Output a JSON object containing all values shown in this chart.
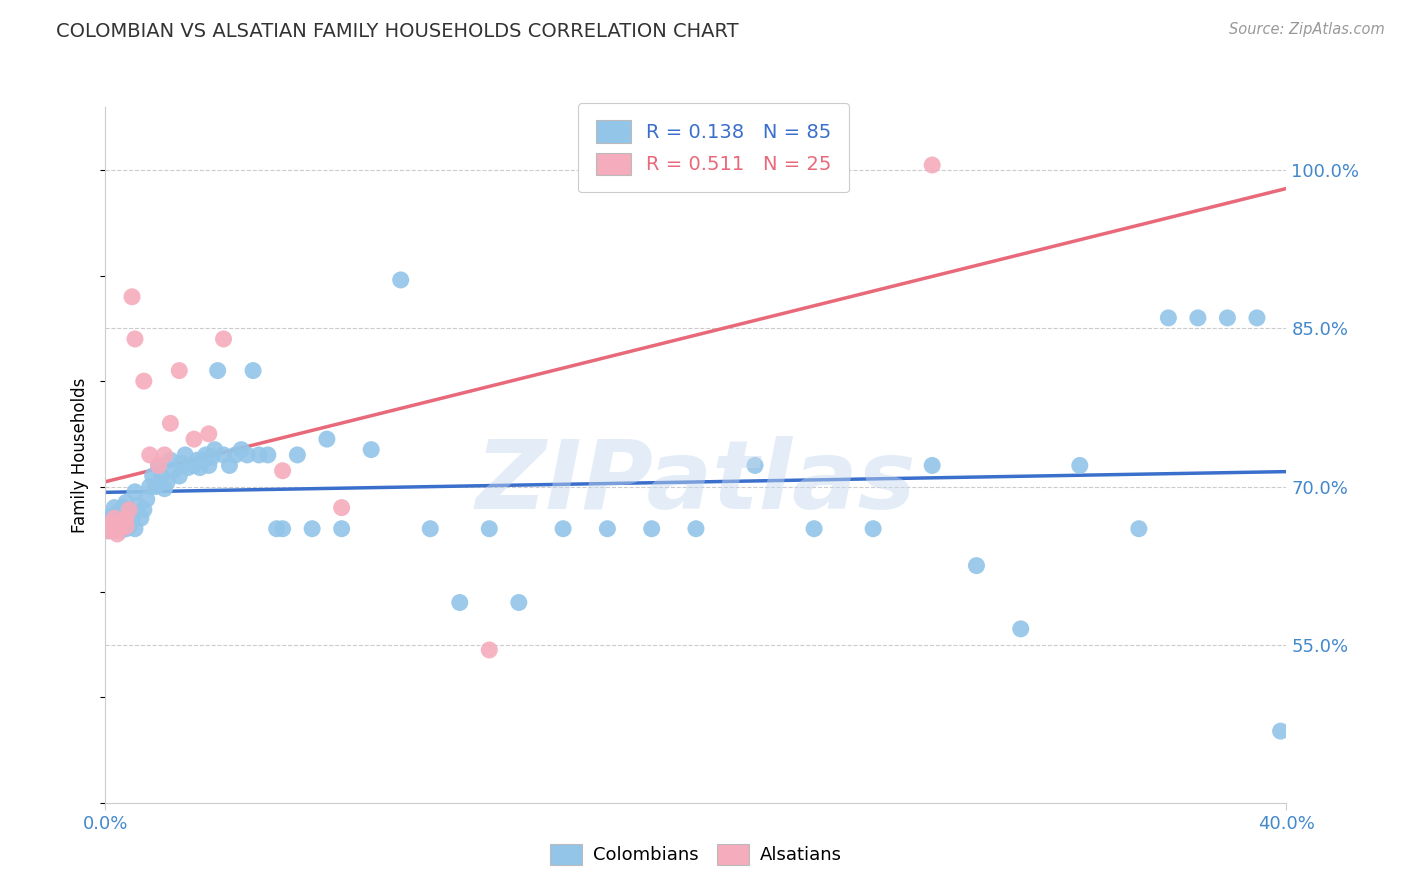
{
  "title": "COLOMBIAN VS ALSATIAN FAMILY HOUSEHOLDS CORRELATION CHART",
  "source": "Source: ZipAtlas.com",
  "ylabel": "Family Households",
  "xlim": [
    0.0,
    0.4
  ],
  "ylim": [
    0.4,
    1.06
  ],
  "yticks": [
    0.55,
    0.7,
    0.85,
    1.0
  ],
  "ytick_labels": [
    "55.0%",
    "70.0%",
    "85.0%",
    "100.0%"
  ],
  "xtick_vals": [
    0.0,
    0.4
  ],
  "xtick_labels": [
    "0.0%",
    "40.0%"
  ],
  "watermark": "ZIPatlas",
  "blue_color": "#92C5E8",
  "pink_color": "#F5ACBC",
  "blue_line_color": "#3B6FCC",
  "pink_line_color": "#E8697A",
  "title_color": "#333333",
  "axis_color": "#4488CC",
  "grid_color": "#CCCCCC",
  "R_blue": 0.138,
  "N_blue": 85,
  "R_pink": 0.511,
  "N_pink": 25,
  "blue_x": [
    0.001,
    0.001,
    0.002,
    0.002,
    0.003,
    0.003,
    0.004,
    0.004,
    0.005,
    0.005,
    0.005,
    0.006,
    0.006,
    0.007,
    0.007,
    0.007,
    0.008,
    0.008,
    0.009,
    0.009,
    0.01,
    0.01,
    0.011,
    0.012,
    0.013,
    0.014,
    0.015,
    0.016,
    0.017,
    0.018,
    0.019,
    0.02,
    0.021,
    0.022,
    0.023,
    0.025,
    0.026,
    0.027,
    0.028,
    0.03,
    0.031,
    0.032,
    0.033,
    0.034,
    0.035,
    0.036,
    0.037,
    0.038,
    0.04,
    0.042,
    0.044,
    0.046,
    0.048,
    0.05,
    0.052,
    0.055,
    0.058,
    0.06,
    0.065,
    0.07,
    0.075,
    0.08,
    0.09,
    0.1,
    0.11,
    0.12,
    0.13,
    0.14,
    0.155,
    0.17,
    0.185,
    0.2,
    0.22,
    0.24,
    0.26,
    0.28,
    0.295,
    0.31,
    0.33,
    0.35,
    0.36,
    0.37,
    0.38,
    0.39,
    0.398
  ],
  "blue_y": [
    0.67,
    0.658,
    0.672,
    0.668,
    0.665,
    0.68,
    0.662,
    0.675,
    0.668,
    0.672,
    0.658,
    0.67,
    0.68,
    0.66,
    0.672,
    0.685,
    0.662,
    0.678,
    0.668,
    0.675,
    0.66,
    0.695,
    0.682,
    0.67,
    0.678,
    0.688,
    0.7,
    0.71,
    0.7,
    0.72,
    0.71,
    0.698,
    0.705,
    0.725,
    0.715,
    0.71,
    0.722,
    0.73,
    0.718,
    0.72,
    0.725,
    0.718,
    0.725,
    0.73,
    0.72,
    0.728,
    0.735,
    0.81,
    0.73,
    0.72,
    0.73,
    0.735,
    0.73,
    0.81,
    0.73,
    0.73,
    0.66,
    0.66,
    0.73,
    0.66,
    0.745,
    0.66,
    0.735,
    0.896,
    0.66,
    0.59,
    0.66,
    0.59,
    0.66,
    0.66,
    0.66,
    0.66,
    0.72,
    0.66,
    0.66,
    0.72,
    0.625,
    0.565,
    0.72,
    0.66,
    0.86,
    0.86,
    0.86,
    0.86,
    0.468
  ],
  "pink_x": [
    0.001,
    0.002,
    0.003,
    0.003,
    0.004,
    0.005,
    0.006,
    0.007,
    0.007,
    0.008,
    0.009,
    0.01,
    0.013,
    0.015,
    0.018,
    0.02,
    0.022,
    0.025,
    0.03,
    0.035,
    0.04,
    0.06,
    0.08,
    0.13,
    0.28
  ],
  "pink_y": [
    0.658,
    0.665,
    0.658,
    0.67,
    0.655,
    0.66,
    0.668,
    0.662,
    0.67,
    0.678,
    0.88,
    0.84,
    0.8,
    0.73,
    0.72,
    0.73,
    0.76,
    0.81,
    0.745,
    0.75,
    0.84,
    0.715,
    0.68,
    0.545,
    1.005
  ]
}
